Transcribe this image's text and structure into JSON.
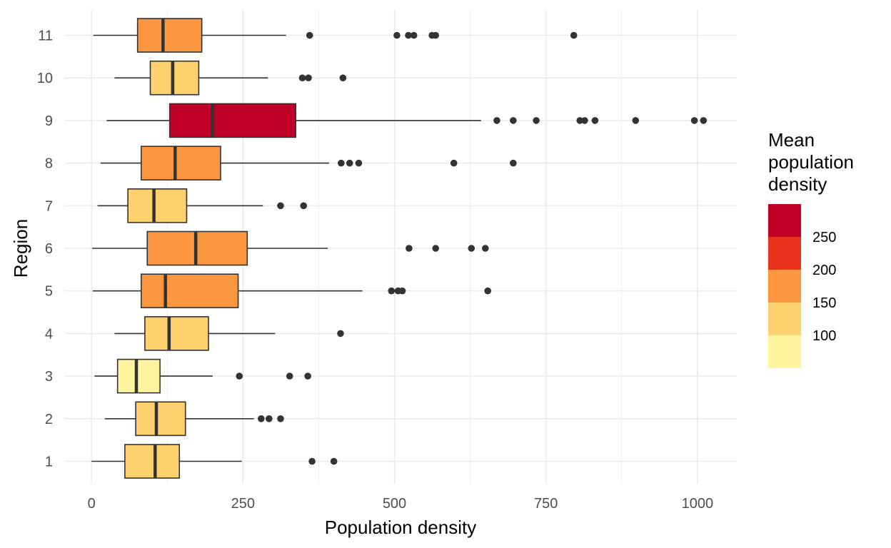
{
  "chart_data": {
    "type": "boxplot",
    "orientation": "horizontal",
    "xlabel": "Population density",
    "ylabel": "Region",
    "xlim": [
      -45,
      1065
    ],
    "x_ticks": [
      0,
      250,
      500,
      750,
      1000
    ],
    "x_tick_labels": [
      "0",
      "250",
      "500",
      "750",
      "1000"
    ],
    "grid": true,
    "legend": {
      "title": [
        "Mean",
        "population",
        "density"
      ],
      "placement": "right",
      "range": [
        50,
        300
      ],
      "levels": [
        {
          "from": 50,
          "to": 100,
          "color": "#FFF5A0"
        },
        {
          "from": 100,
          "to": 150,
          "color": "#FED16F"
        },
        {
          "from": 150,
          "to": 200,
          "color": "#FD9640"
        },
        {
          "from": 200,
          "to": 250,
          "color": "#E8321E"
        },
        {
          "from": 250,
          "to": 300,
          "color": "#C00026"
        }
      ],
      "labels": [
        "100",
        "150",
        "200",
        "250"
      ]
    },
    "categories": [
      "1",
      "2",
      "3",
      "4",
      "5",
      "6",
      "7",
      "8",
      "9",
      "10",
      "11"
    ],
    "boxes": [
      {
        "region": "1",
        "whisker_low": 0,
        "q1": 55,
        "median": 105,
        "q3": 145,
        "whisker_high": 248,
        "outliers": [
          364,
          400
        ],
        "fill": "#FED16F"
      },
      {
        "region": "2",
        "whisker_low": 22,
        "q1": 73,
        "median": 107,
        "q3": 155,
        "whisker_high": 268,
        "outliers": [
          280,
          293,
          312
        ],
        "fill": "#FED16F"
      },
      {
        "region": "3",
        "whisker_low": 5,
        "q1": 43,
        "median": 74,
        "q3": 113,
        "whisker_high": 200,
        "outliers": [
          244,
          327,
          357
        ],
        "fill": "#FFF5A0"
      },
      {
        "region": "4",
        "whisker_low": 38,
        "q1": 88,
        "median": 128,
        "q3": 193,
        "whisker_high": 303,
        "outliers": [
          411
        ],
        "fill": "#FED16F"
      },
      {
        "region": "5",
        "whisker_low": 2,
        "q1": 82,
        "median": 122,
        "q3": 242,
        "whisker_high": 447,
        "outliers": [
          495,
          506,
          513,
          654
        ],
        "fill": "#FD9640"
      },
      {
        "region": "6",
        "whisker_low": 1,
        "q1": 92,
        "median": 172,
        "q3": 257,
        "whisker_high": 390,
        "outliers": [
          524,
          568,
          627,
          650
        ],
        "fill": "#FD9640"
      },
      {
        "region": "7",
        "whisker_low": 10,
        "q1": 60,
        "median": 103,
        "q3": 157,
        "whisker_high": 283,
        "outliers": [
          312,
          350
        ],
        "fill": "#FED16F"
      },
      {
        "region": "8",
        "whisker_low": 15,
        "q1": 82,
        "median": 138,
        "q3": 213,
        "whisker_high": 392,
        "outliers": [
          412,
          426,
          441,
          598,
          696
        ],
        "fill": "#FD9640"
      },
      {
        "region": "9",
        "whisker_low": 25,
        "q1": 129,
        "median": 200,
        "q3": 337,
        "whisker_high": 643,
        "outliers": [
          669,
          696,
          734,
          806,
          814,
          831,
          898,
          995,
          1010
        ],
        "fill": "#C00026"
      },
      {
        "region": "10",
        "whisker_low": 38,
        "q1": 97,
        "median": 134,
        "q3": 177,
        "whisker_high": 291,
        "outliers": [
          348,
          358,
          415
        ],
        "fill": "#FED16F"
      },
      {
        "region": "11",
        "whisker_low": 3,
        "q1": 76,
        "median": 118,
        "q3": 182,
        "whisker_high": 321,
        "outliers": [
          360,
          504,
          523,
          532,
          562,
          568,
          796
        ],
        "fill": "#FD9640"
      }
    ],
    "colors": {
      "grid": "#EBEBEB",
      "line": "#333333",
      "outlier": "#333333"
    }
  }
}
